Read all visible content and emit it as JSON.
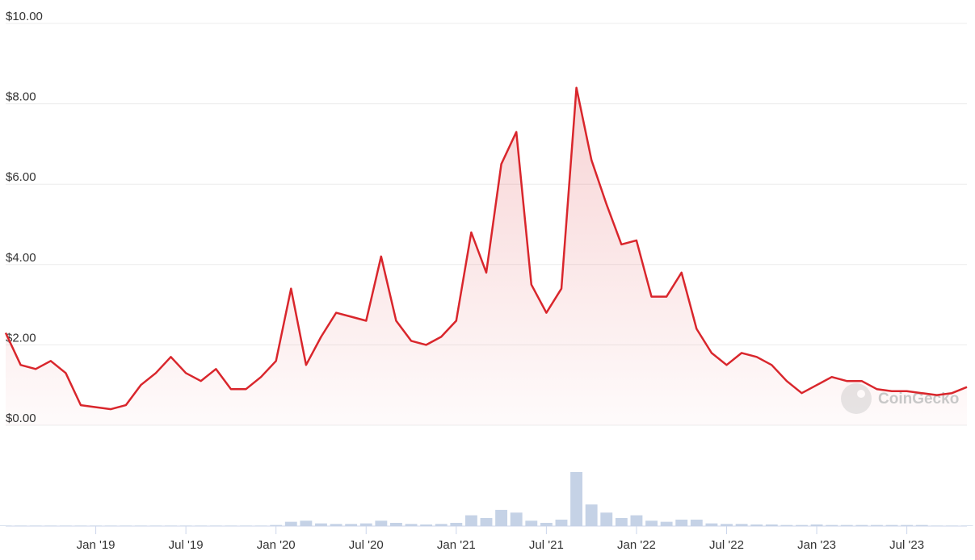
{
  "chart_data": {
    "type": "line",
    "watermark": "CoinGecko",
    "x": [
      "2018-07",
      "2018-08",
      "2018-09",
      "2018-10",
      "2018-11",
      "2018-12",
      "2019-01",
      "2019-02",
      "2019-03",
      "2019-04",
      "2019-05",
      "2019-06",
      "2019-07",
      "2019-08",
      "2019-09",
      "2019-10",
      "2019-11",
      "2019-12",
      "2020-01",
      "2020-02",
      "2020-03",
      "2020-04",
      "2020-05",
      "2020-06",
      "2020-07",
      "2020-08",
      "2020-09",
      "2020-10",
      "2020-11",
      "2020-12",
      "2021-01",
      "2021-02",
      "2021-03",
      "2021-04",
      "2021-05",
      "2021-06",
      "2021-07",
      "2021-08",
      "2021-09",
      "2021-10",
      "2021-11",
      "2021-12",
      "2022-01",
      "2022-02",
      "2022-03",
      "2022-04",
      "2022-05",
      "2022-06",
      "2022-07",
      "2022-08",
      "2022-09",
      "2022-10",
      "2022-11",
      "2022-12",
      "2023-01",
      "2023-02",
      "2023-03",
      "2023-04",
      "2023-05",
      "2023-06",
      "2023-07",
      "2023-08",
      "2023-09",
      "2023-10",
      "2023-11"
    ],
    "series": [
      {
        "color": "#d9262c",
        "values": [
          2.3,
          1.5,
          1.4,
          1.6,
          1.3,
          0.5,
          0.45,
          0.4,
          0.5,
          1.0,
          1.3,
          1.7,
          1.3,
          1.1,
          1.4,
          0.9,
          0.9,
          1.2,
          1.6,
          3.4,
          1.5,
          2.2,
          2.8,
          2.7,
          2.6,
          4.2,
          2.6,
          2.1,
          2.0,
          2.2,
          2.6,
          4.8,
          3.8,
          6.5,
          7.3,
          3.5,
          2.8,
          3.4,
          8.4,
          6.6,
          5.5,
          4.5,
          4.6,
          3.2,
          3.2,
          3.8,
          2.4,
          1.8,
          1.5,
          1.8,
          1.7,
          1.5,
          1.1,
          0.8,
          1.0,
          1.2,
          1.1,
          1.1,
          0.9,
          0.85,
          0.85,
          0.8,
          0.75,
          0.8,
          0.95
        ]
      }
    ],
    "volume": {
      "color": "#c5d2e6",
      "values": [
        1,
        1,
        1,
        1,
        1,
        1,
        1,
        1,
        1,
        1,
        1,
        1,
        1,
        1,
        1,
        1,
        1,
        1,
        2,
        8,
        10,
        5,
        4,
        4,
        5,
        10,
        6,
        4,
        3,
        4,
        6,
        20,
        15,
        30,
        25,
        10,
        6,
        12,
        100,
        40,
        25,
        15,
        20,
        10,
        8,
        12,
        12,
        5,
        4,
        4,
        3,
        3,
        2,
        2,
        3,
        2,
        2,
        2,
        2,
        2,
        2,
        2,
        1,
        1,
        1
      ]
    },
    "xlim": [
      "2018-07",
      "2023-11"
    ],
    "xticks": [
      {
        "value": "2019-01",
        "label": "Jan '19"
      },
      {
        "value": "2019-07",
        "label": "Jul '19"
      },
      {
        "value": "2020-01",
        "label": "Jan '20"
      },
      {
        "value": "2020-07",
        "label": "Jul '20"
      },
      {
        "value": "2021-01",
        "label": "Jan '21"
      },
      {
        "value": "2021-07",
        "label": "Jul '21"
      },
      {
        "value": "2022-01",
        "label": "Jan '22"
      },
      {
        "value": "2022-07",
        "label": "Jul '22"
      },
      {
        "value": "2023-01",
        "label": "Jan '23"
      },
      {
        "value": "2023-07",
        "label": "Jul '23"
      }
    ],
    "ylim": [
      0,
      10
    ],
    "yticks": [
      {
        "value": 0,
        "label": "$0.00"
      },
      {
        "value": 2,
        "label": "$2.00"
      },
      {
        "value": 4,
        "label": "$4.00"
      },
      {
        "value": 6,
        "label": "$6.00"
      },
      {
        "value": 8,
        "label": "$8.00"
      },
      {
        "value": 10,
        "label": "$10.00"
      }
    ],
    "grid": true
  }
}
